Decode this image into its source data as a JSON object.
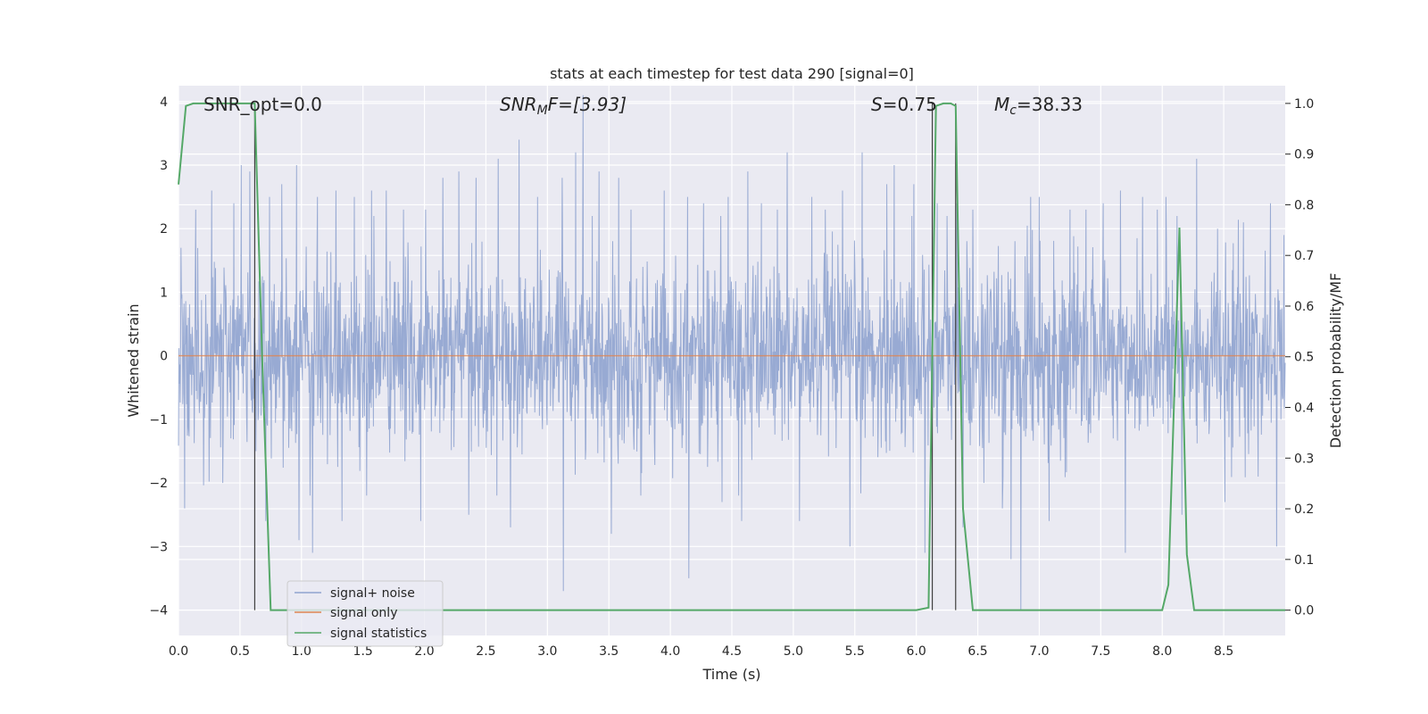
{
  "chart_data": {
    "type": "line",
    "title": "stats at each timestep for test data 290 [signal=0]",
    "xlabel": "Time (s)",
    "ylabel": "Whitened strain",
    "ylabel_right": "Detection probability/MF",
    "xlim": [
      0,
      9.0
    ],
    "ylim": [
      -4.4,
      4.25
    ],
    "ylim_right": [
      -0.05,
      1.035
    ],
    "x_ticks": [
      0.0,
      0.5,
      1.0,
      1.5,
      2.0,
      2.5,
      3.0,
      3.5,
      4.0,
      4.5,
      5.0,
      5.5,
      6.0,
      6.5,
      7.0,
      7.5,
      8.0,
      8.5
    ],
    "x_tick_labels": [
      "0.0",
      "0.5",
      "1.0",
      "1.5",
      "2.0",
      "2.5",
      "3.0",
      "3.5",
      "4.0",
      "4.5",
      "5.0",
      "5.5",
      "6.0",
      "6.5",
      "7.0",
      "7.5",
      "8.0",
      "8.5"
    ],
    "y_ticks": [
      4,
      3,
      2,
      1,
      0,
      -1,
      -2,
      -3,
      -4
    ],
    "y_tick_labels": [
      "4",
      "3",
      "2",
      "1",
      "0",
      "−1",
      "−2",
      "−3",
      "−4"
    ],
    "y_ticks_right": [
      1.0,
      0.9,
      0.8,
      0.7,
      0.6,
      0.5,
      0.4,
      0.3,
      0.2,
      0.1,
      0.0
    ],
    "y_tick_labels_right": [
      "1.0",
      "0.9",
      "0.8",
      "0.7",
      "0.6",
      "0.5",
      "0.4",
      "0.3",
      "0.2",
      "0.1",
      "0.0"
    ],
    "grid": true,
    "legend_position": "lower-left",
    "annotations": {
      "snr_opt": "SNR_opt=0.0",
      "snr_mf_main": "SNR",
      "snr_mf_sub": "M",
      "snr_mf_rest": "F=[3.93]",
      "s_main": "S",
      "s_rest": "=0.75",
      "mc_main": "M",
      "mc_sub": "c",
      "mc_rest": "=38.33"
    },
    "series": [
      {
        "name": "signal+ noise",
        "color": "#8fa3cf",
        "noise_std": 0.72,
        "peaks": [
          [
            0.02,
            1.7
          ],
          [
            0.05,
            -2.4
          ],
          [
            0.14,
            2.3
          ],
          [
            0.27,
            2.6
          ],
          [
            0.36,
            -2.0
          ],
          [
            0.45,
            2.4
          ],
          [
            0.51,
            3.0
          ],
          [
            0.58,
            2.9
          ],
          [
            0.63,
            -1.5
          ],
          [
            0.71,
            -2.6
          ],
          [
            0.74,
            2.5
          ],
          [
            0.84,
            2.7
          ],
          [
            0.96,
            3.0
          ],
          [
            0.98,
            -2.9
          ],
          [
            1.09,
            -3.1
          ],
          [
            1.13,
            2.5
          ],
          [
            1.28,
            2.6
          ],
          [
            1.33,
            -2.6
          ],
          [
            1.43,
            2.5
          ],
          [
            1.53,
            -2.2
          ],
          [
            1.57,
            2.6
          ],
          [
            1.69,
            2.6
          ],
          [
            1.83,
            2.3
          ],
          [
            1.97,
            -2.6
          ],
          [
            2.01,
            2.3
          ],
          [
            2.15,
            2.8
          ],
          [
            2.28,
            2.9
          ],
          [
            2.36,
            -2.5
          ],
          [
            2.42,
            2.8
          ],
          [
            2.6,
            3.1
          ],
          [
            2.7,
            -2.7
          ],
          [
            2.77,
            3.4
          ],
          [
            2.92,
            2.5
          ],
          [
            3.12,
            2.8
          ],
          [
            3.13,
            -3.7
          ],
          [
            3.23,
            3.2
          ],
          [
            3.29,
            4.1
          ],
          [
            3.42,
            2.9
          ],
          [
            3.52,
            -2.8
          ],
          [
            3.58,
            2.8
          ],
          [
            3.68,
            2.3
          ],
          [
            3.76,
            -2.2
          ],
          [
            3.95,
            2.6
          ],
          [
            4.14,
            2.5
          ],
          [
            4.15,
            -3.5
          ],
          [
            4.27,
            2.4
          ],
          [
            4.42,
            -2.3
          ],
          [
            4.47,
            2.5
          ],
          [
            4.58,
            -2.6
          ],
          [
            4.63,
            2.9
          ],
          [
            4.74,
            2.4
          ],
          [
            4.87,
            2.3
          ],
          [
            4.95,
            3.2
          ],
          [
            5.05,
            -2.6
          ],
          [
            5.15,
            2.5
          ],
          [
            5.26,
            2.3
          ],
          [
            5.4,
            2.6
          ],
          [
            5.46,
            -3.0
          ],
          [
            5.56,
            3.2
          ],
          [
            5.76,
            2.7
          ],
          [
            5.82,
            3.0
          ],
          [
            5.98,
            2.7
          ],
          [
            6.07,
            -3.1
          ],
          [
            6.17,
            2.4
          ],
          [
            6.25,
            2.2
          ],
          [
            6.33,
            2.4
          ],
          [
            6.38,
            -2.7
          ],
          [
            6.46,
            2.3
          ],
          [
            6.55,
            -2.0
          ],
          [
            6.7,
            -2.4
          ],
          [
            6.77,
            -3.2
          ],
          [
            6.85,
            -4.0
          ],
          [
            6.93,
            2.5
          ],
          [
            7.0,
            2.5
          ],
          [
            7.08,
            -2.6
          ],
          [
            7.25,
            2.3
          ],
          [
            7.38,
            2.3
          ],
          [
            7.52,
            2.4
          ],
          [
            7.66,
            2.6
          ],
          [
            7.7,
            -3.1
          ],
          [
            7.84,
            2.5
          ],
          [
            7.96,
            2.3
          ],
          [
            8.03,
            2.5
          ],
          [
            8.12,
            2.2
          ],
          [
            8.16,
            -2.5
          ],
          [
            8.28,
            3.1
          ],
          [
            8.45,
            2.0
          ],
          [
            8.51,
            -2.3
          ],
          [
            8.66,
            2.1
          ],
          [
            8.78,
            -1.9
          ],
          [
            8.88,
            2.4
          ],
          [
            8.93,
            -3.0
          ],
          [
            8.99,
            1.9
          ]
        ]
      },
      {
        "name": "signal only",
        "color": "#dd8452",
        "y": 0
      },
      {
        "name": "signal statistics",
        "color": "#55a868",
        "axis": "right",
        "x": [
          0.0,
          0.06,
          0.12,
          0.2,
          0.3,
          0.4,
          0.5,
          0.55,
          0.6,
          0.62,
          0.68,
          0.75,
          1.5,
          3.0,
          4.5,
          6.0,
          6.1,
          6.16,
          6.22,
          6.28,
          6.32,
          6.38,
          6.46,
          7.0,
          7.5,
          8.0,
          8.05,
          8.14,
          8.2,
          8.26,
          8.4,
          9.0
        ],
        "y": [
          0.84,
          0.995,
          1.0,
          1.0,
          1.0,
          1.0,
          1.0,
          1.0,
          1.0,
          1.0,
          0.5,
          0.0,
          0.0,
          0.0,
          0.0,
          0.0,
          0.005,
          0.995,
          1.0,
          1.0,
          0.995,
          0.2,
          0.0,
          0.0,
          0.0,
          0.0,
          0.05,
          0.755,
          0.11,
          0.0,
          0.0,
          0.0
        ]
      }
    ],
    "vertical_lines": [
      0.62,
      6.13,
      6.32
    ]
  }
}
